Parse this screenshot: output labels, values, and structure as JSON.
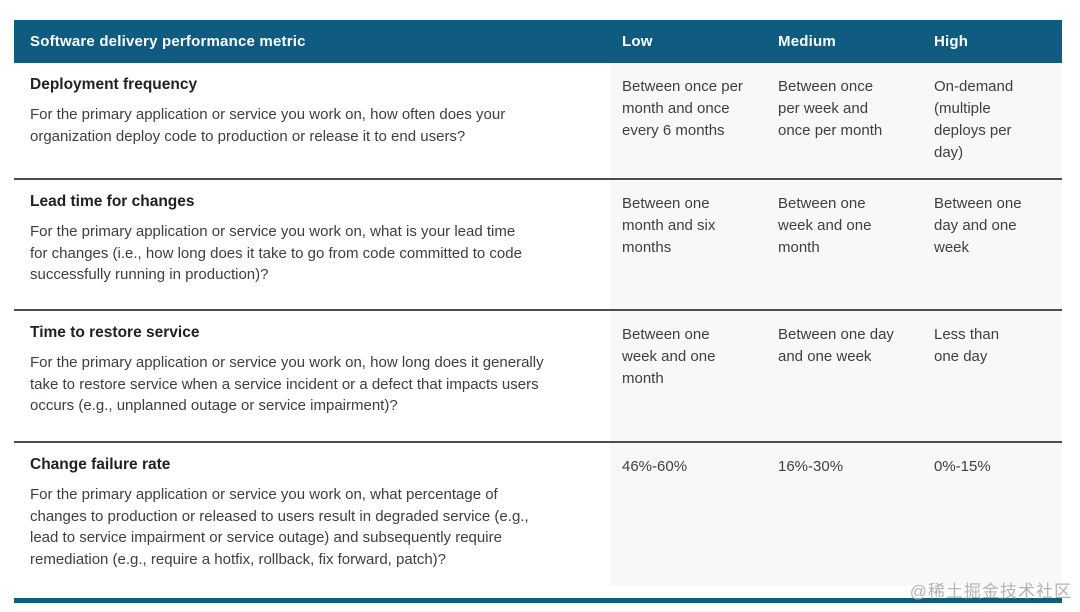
{
  "table": {
    "headers": {
      "metric": "Software delivery performance metric",
      "low": "Low",
      "medium": "Medium",
      "high": "High"
    },
    "rows": [
      {
        "title": "Deployment frequency",
        "description": "For the primary application or service you work on, how often does your\norganization deploy code to production or release it to end users?",
        "low": "Between once per\nmonth and once\nevery 6 months",
        "medium": "Between once\nper week and\nonce per month",
        "high": "On-demand\n(multiple\ndeploys per\nday)"
      },
      {
        "title": "Lead time for changes",
        "description": "For the primary application or service you work on, what is your lead time\nfor changes (i.e., how long does it take to go from code committed to code\nsuccessfully running in production)?",
        "low": "Between one\nmonth and six\nmonths",
        "medium": "Between one\nweek and one\nmonth",
        "high": "Between one\nday and one\nweek"
      },
      {
        "title": "Time to restore service",
        "description": "For the primary application or service you work on, how long does it generally\ntake to restore service when a service incident or a defect that impacts users\noccurs (e.g., unplanned outage or service impairment)?",
        "low": "Between one\nweek and one\nmonth",
        "medium": "Between one day\nand one week",
        "high": "Less than\none day"
      },
      {
        "title": "Change failure rate",
        "description": "For the primary application or service you work on, what percentage of\nchanges to production or released to users result in degraded service (e.g.,\nlead to service impairment or service outage) and subsequently require\nremediation (e.g., require a hotfix, rollback, fix forward, patch)?",
        "low": "46%-60%",
        "medium": "16%-30%",
        "high": "0%-15%"
      }
    ]
  },
  "colors": {
    "header_bg": "#0f5c80",
    "value_column_bg": "#f8f8f8",
    "divider": "#4e4e4e"
  },
  "watermark": {
    "text": "@稀土掘金技术社区"
  }
}
